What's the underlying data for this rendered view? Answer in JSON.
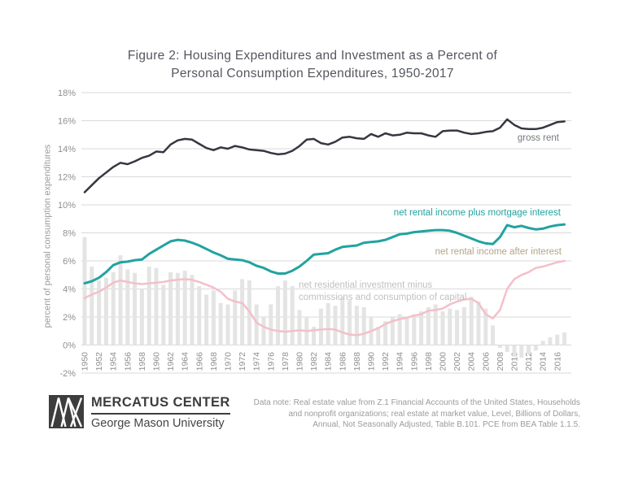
{
  "title": {
    "line1": "Figure 2: Housing Expenditures and Investment as a Percent of",
    "line2": "Personal Consumption Expenditures, 1950-2017"
  },
  "y_axis": {
    "title": "percent of personal consumption expenditures"
  },
  "series_labels": {
    "gross_rent": "gross rent",
    "plus_mortgage": "net rental income plus mortgage interest",
    "after_interest": "net rental income after interest",
    "investment_line1": "net residential investment minus",
    "investment_line2": "commissions and consumption of capital"
  },
  "footer": {
    "logo_name": "MERCATUS CENTER",
    "logo_sub": "George Mason University",
    "note_lines": [
      "Data note: Real estate value from  Z.1 Financial Accounts of the United States, Households",
      "and nonprofit organizations; real estate at market value, Level, Billions of Dollars,",
      "Annual, Not Seasonally Adjusted, Table B.101. PCE from BEA Table 1.1.5."
    ]
  },
  "colors": {
    "grid": "#d9d9d9",
    "tick_text": "#8f8f8f",
    "gross_rent": "#343741",
    "plus_mortgage": "#21a3a0",
    "after_interest": "#f3c0ca",
    "investment_bar": "#e4e4e4"
  },
  "chart_data": {
    "type": "line",
    "title": "Figure 2: Housing Expenditures and Investment as a Percent of Personal Consumption Expenditures, 1950-2017",
    "xlabel": "",
    "ylabel": "percent of personal consumption expenditures",
    "ylim": [
      -2,
      18
    ],
    "grid": true,
    "legend_position": "inline-labels",
    "x": [
      1950,
      1951,
      1952,
      1953,
      1954,
      1955,
      1956,
      1957,
      1958,
      1959,
      1960,
      1961,
      1962,
      1963,
      1964,
      1965,
      1966,
      1967,
      1968,
      1969,
      1970,
      1971,
      1972,
      1973,
      1974,
      1975,
      1976,
      1977,
      1978,
      1979,
      1980,
      1981,
      1982,
      1983,
      1984,
      1985,
      1986,
      1987,
      1988,
      1989,
      1990,
      1991,
      1992,
      1993,
      1994,
      1995,
      1996,
      1997,
      1998,
      1999,
      2000,
      2001,
      2002,
      2003,
      2004,
      2005,
      2006,
      2007,
      2008,
      2009,
      2010,
      2011,
      2012,
      2013,
      2014,
      2015,
      2016,
      2017
    ],
    "x_tick_labels": [
      "1950",
      "1952",
      "1954",
      "1956",
      "1958",
      "1960",
      "1962",
      "1964",
      "1966",
      "1968",
      "1970",
      "1972",
      "1974",
      "1976",
      "1978",
      "1980",
      "1982",
      "1984",
      "1986",
      "1988",
      "1990",
      "1992",
      "1994",
      "1996",
      "1998",
      "2000",
      "2002",
      "2004",
      "2006",
      "2008",
      "2010",
      "2012",
      "2014",
      "2016"
    ],
    "y_tick_labels": [
      "18%",
      "16%",
      "14%",
      "12%",
      "10%",
      "8%",
      "6%",
      "4%",
      "2%",
      "0%",
      "-2%"
    ],
    "y_tick_values": [
      18,
      16,
      14,
      12,
      10,
      8,
      6,
      4,
      2,
      0,
      -2
    ],
    "series": [
      {
        "name": "gross rent",
        "type": "line",
        "color": "#343741",
        "values": [
          10.9,
          11.4,
          11.9,
          12.3,
          12.7,
          13.0,
          12.9,
          13.1,
          13.35,
          13.5,
          13.8,
          13.75,
          14.3,
          14.6,
          14.7,
          14.65,
          14.35,
          14.05,
          13.9,
          14.1,
          14.0,
          14.2,
          14.1,
          13.95,
          13.9,
          13.85,
          13.7,
          13.6,
          13.65,
          13.85,
          14.2,
          14.65,
          14.7,
          14.4,
          14.3,
          14.5,
          14.8,
          14.85,
          14.75,
          14.7,
          15.05,
          14.85,
          15.1,
          14.95,
          15.0,
          15.15,
          15.1,
          15.1,
          14.95,
          14.85,
          15.25,
          15.3,
          15.3,
          15.15,
          15.05,
          15.1,
          15.2,
          15.25,
          15.5,
          16.1,
          15.7,
          15.45,
          15.4,
          15.4,
          15.5,
          15.7,
          15.9,
          15.95
        ]
      },
      {
        "name": "net rental income plus mortgage interest",
        "type": "line",
        "color": "#21a3a0",
        "values": [
          4.4,
          4.55,
          4.8,
          5.2,
          5.7,
          5.9,
          5.95,
          6.05,
          6.1,
          6.5,
          6.8,
          7.1,
          7.4,
          7.5,
          7.45,
          7.3,
          7.1,
          6.85,
          6.6,
          6.4,
          6.15,
          6.1,
          6.05,
          5.9,
          5.65,
          5.5,
          5.25,
          5.1,
          5.1,
          5.3,
          5.6,
          6.0,
          6.45,
          6.5,
          6.55,
          6.8,
          7.0,
          7.05,
          7.1,
          7.3,
          7.35,
          7.4,
          7.5,
          7.7,
          7.9,
          7.95,
          8.05,
          8.1,
          8.15,
          8.2,
          8.2,
          8.15,
          8.0,
          7.8,
          7.6,
          7.4,
          7.25,
          7.2,
          7.7,
          8.55,
          8.4,
          8.5,
          8.35,
          8.25,
          8.3,
          8.45,
          8.55,
          8.6
        ]
      },
      {
        "name": "net rental income after interest",
        "type": "line",
        "color": "#f3c0ca",
        "values": [
          3.35,
          3.6,
          3.8,
          4.1,
          4.45,
          4.6,
          4.5,
          4.4,
          4.35,
          4.4,
          4.45,
          4.5,
          4.6,
          4.65,
          4.7,
          4.65,
          4.5,
          4.3,
          4.1,
          3.8,
          3.3,
          3.1,
          3.0,
          2.4,
          1.6,
          1.3,
          1.1,
          1.0,
          0.95,
          1.0,
          1.05,
          1.0,
          1.05,
          1.1,
          1.15,
          1.1,
          0.9,
          0.75,
          0.7,
          0.8,
          1.0,
          1.2,
          1.5,
          1.7,
          1.85,
          1.95,
          2.1,
          2.2,
          2.45,
          2.5,
          2.6,
          2.9,
          3.1,
          3.25,
          3.3,
          3.0,
          2.2,
          1.9,
          2.5,
          4.0,
          4.7,
          5.0,
          5.2,
          5.5,
          5.6,
          5.75,
          5.9,
          6.0
        ]
      },
      {
        "name": "net residential investment minus commissions and consumption of capital",
        "type": "bar",
        "color": "#e4e4e4",
        "values": [
          7.7,
          5.6,
          4.6,
          4.8,
          5.2,
          6.4,
          5.4,
          5.15,
          4.0,
          5.6,
          5.5,
          4.3,
          5.2,
          5.15,
          5.3,
          5.0,
          4.2,
          3.6,
          3.9,
          3.0,
          2.9,
          3.9,
          4.7,
          4.6,
          2.9,
          2.0,
          2.9,
          4.2,
          4.6,
          4.2,
          2.5,
          2.0,
          1.3,
          2.6,
          3.0,
          2.8,
          3.4,
          3.2,
          2.8,
          2.7,
          2.0,
          1.3,
          1.7,
          2.0,
          2.2,
          2.0,
          2.2,
          2.4,
          2.7,
          2.9,
          2.4,
          2.6,
          2.5,
          2.7,
          3.45,
          3.1,
          2.6,
          1.4,
          -0.2,
          -0.5,
          -0.8,
          -0.9,
          -0.65,
          -0.4,
          0.3,
          0.55,
          0.75,
          0.9
        ]
      }
    ]
  }
}
